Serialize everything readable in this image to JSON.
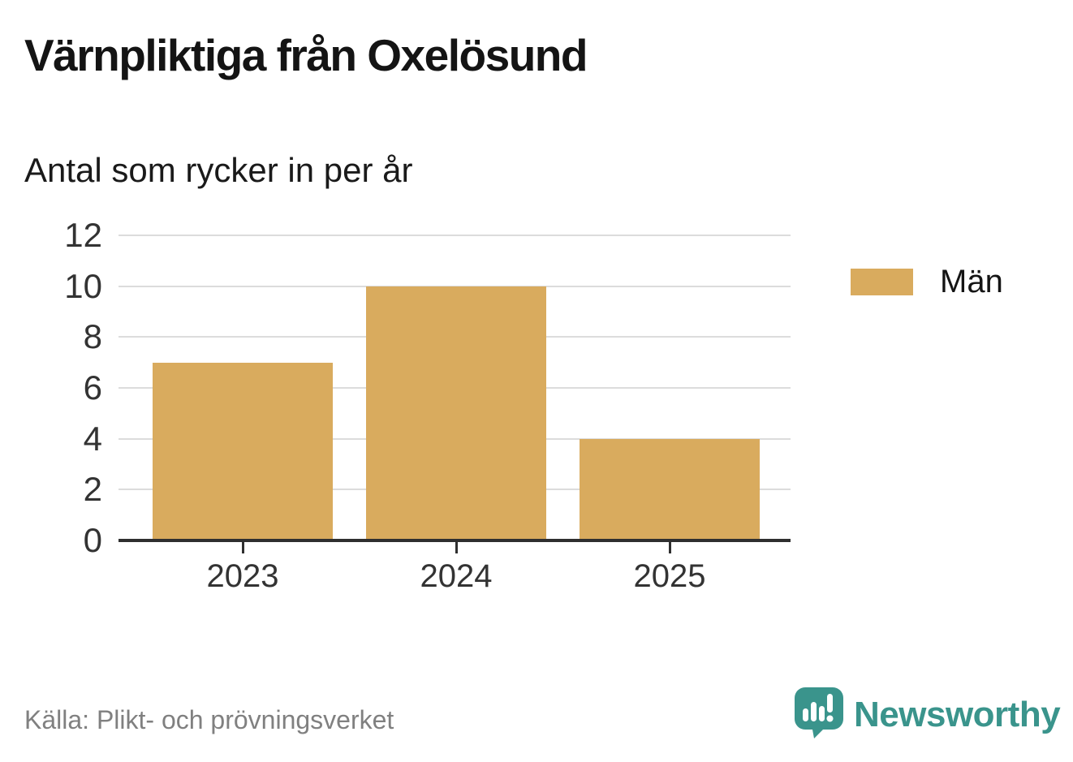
{
  "title": "Värnpliktiga från Oxelösund",
  "subtitle": "Antal som rycker in per år",
  "source": "Källa: Plikt- och prövningsverket",
  "brand": {
    "name": "Newsworthy",
    "logo_icon": "bar-chart-speech-bubble-icon",
    "color": "#3a948c"
  },
  "legend": {
    "label": "Män",
    "color": "#d9ab5e"
  },
  "colors": {
    "bar": "#d9ab5e",
    "grid": "#dcdcdc",
    "axis": "#2f2f2f",
    "tick_text": "#333333",
    "title_text": "#141414",
    "source_text": "#808080"
  },
  "chart_data": {
    "type": "bar",
    "title": "Värnpliktiga från Oxelösund",
    "subtitle": "Antal som rycker in per år",
    "categories": [
      "2023",
      "2024",
      "2025"
    ],
    "series": [
      {
        "name": "Män",
        "color": "#d9ab5e",
        "values": [
          7,
          10,
          4
        ]
      }
    ],
    "xlabel": "",
    "ylabel": "Antal som rycker in per år",
    "ylim": [
      0,
      12
    ],
    "yticks": [
      0,
      2,
      4,
      6,
      8,
      10,
      12
    ],
    "grid": true,
    "legend_position": "right"
  }
}
